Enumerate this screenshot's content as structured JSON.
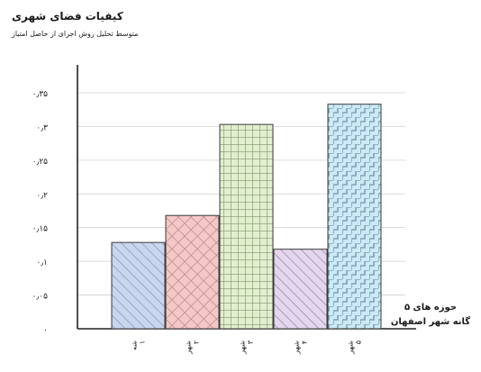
{
  "chart_data": {
    "type": "bar",
    "title": "کیفیات فضای شهری",
    "subtitle": "متوسط تحلیل روش اجرای از حاصل امتیاز",
    "xlabel": "حوزه های ۵ گانه شهر اصفهان",
    "ylabel": "",
    "y_ticks": [
      "۰",
      "۰٫۰۵",
      "۰٫۱",
      "۰٫۱۵",
      "۰٫۲",
      "۰٫۲۵",
      "۰٫۳",
      "۰٫۳۵"
    ],
    "ylim": [
      0,
      0.37
    ],
    "grid": "horizontal",
    "categories": [
      [
        "شه",
        "۱"
      ],
      [
        "شهر",
        "۲"
      ],
      [
        "شهر",
        "۳"
      ],
      [
        "شهر",
        "۴"
      ],
      [
        "شهر",
        "۵"
      ]
    ],
    "values": [
      0.128,
      0.168,
      0.303,
      0.118,
      0.333
    ],
    "patterns": [
      "diagonal",
      "crosshatch",
      "grid",
      "diagonal",
      "steps"
    ],
    "colors": [
      "#c9d6ef",
      "#f6c7c7",
      "#e2efcf",
      "#e4d6ee",
      "#cbe9f6"
    ],
    "stroke_colors": [
      "#8a93a8",
      "#b08989",
      "#7f9169",
      "#8f8699",
      "#7fa2ae"
    ]
  }
}
